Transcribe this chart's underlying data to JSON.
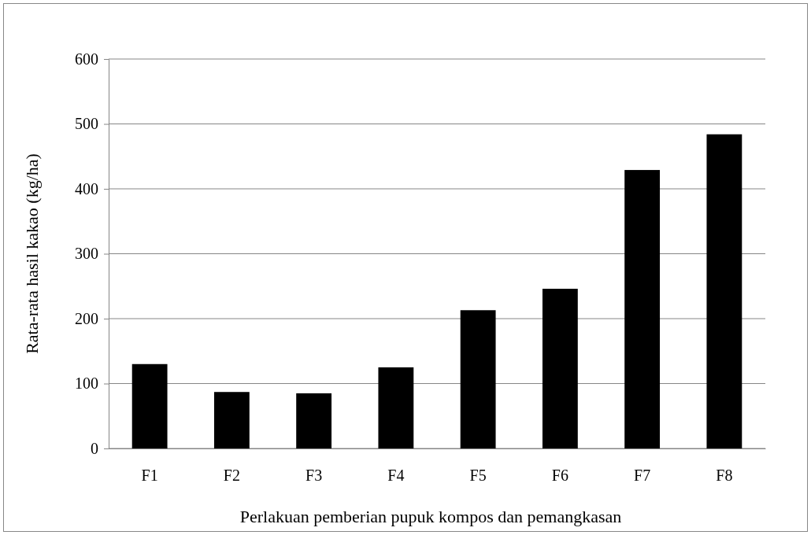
{
  "chart_data": {
    "type": "bar",
    "xlabel": "Perlakuan pemberian pupuk kompos dan pemangkasan",
    "ylabel": "Rata-rata hasil kakao  (kg/ha)",
    "categories": [
      "F1",
      "F2",
      "F3",
      "F4",
      "F5",
      "F6",
      "F7",
      "F8"
    ],
    "values": [
      130,
      87,
      85,
      125,
      213,
      246,
      429,
      484
    ],
    "color": "#000000",
    "ylim": [
      0,
      600
    ],
    "yticks": [
      0,
      100,
      200,
      300,
      400,
      500,
      600
    ],
    "grid": "y"
  }
}
